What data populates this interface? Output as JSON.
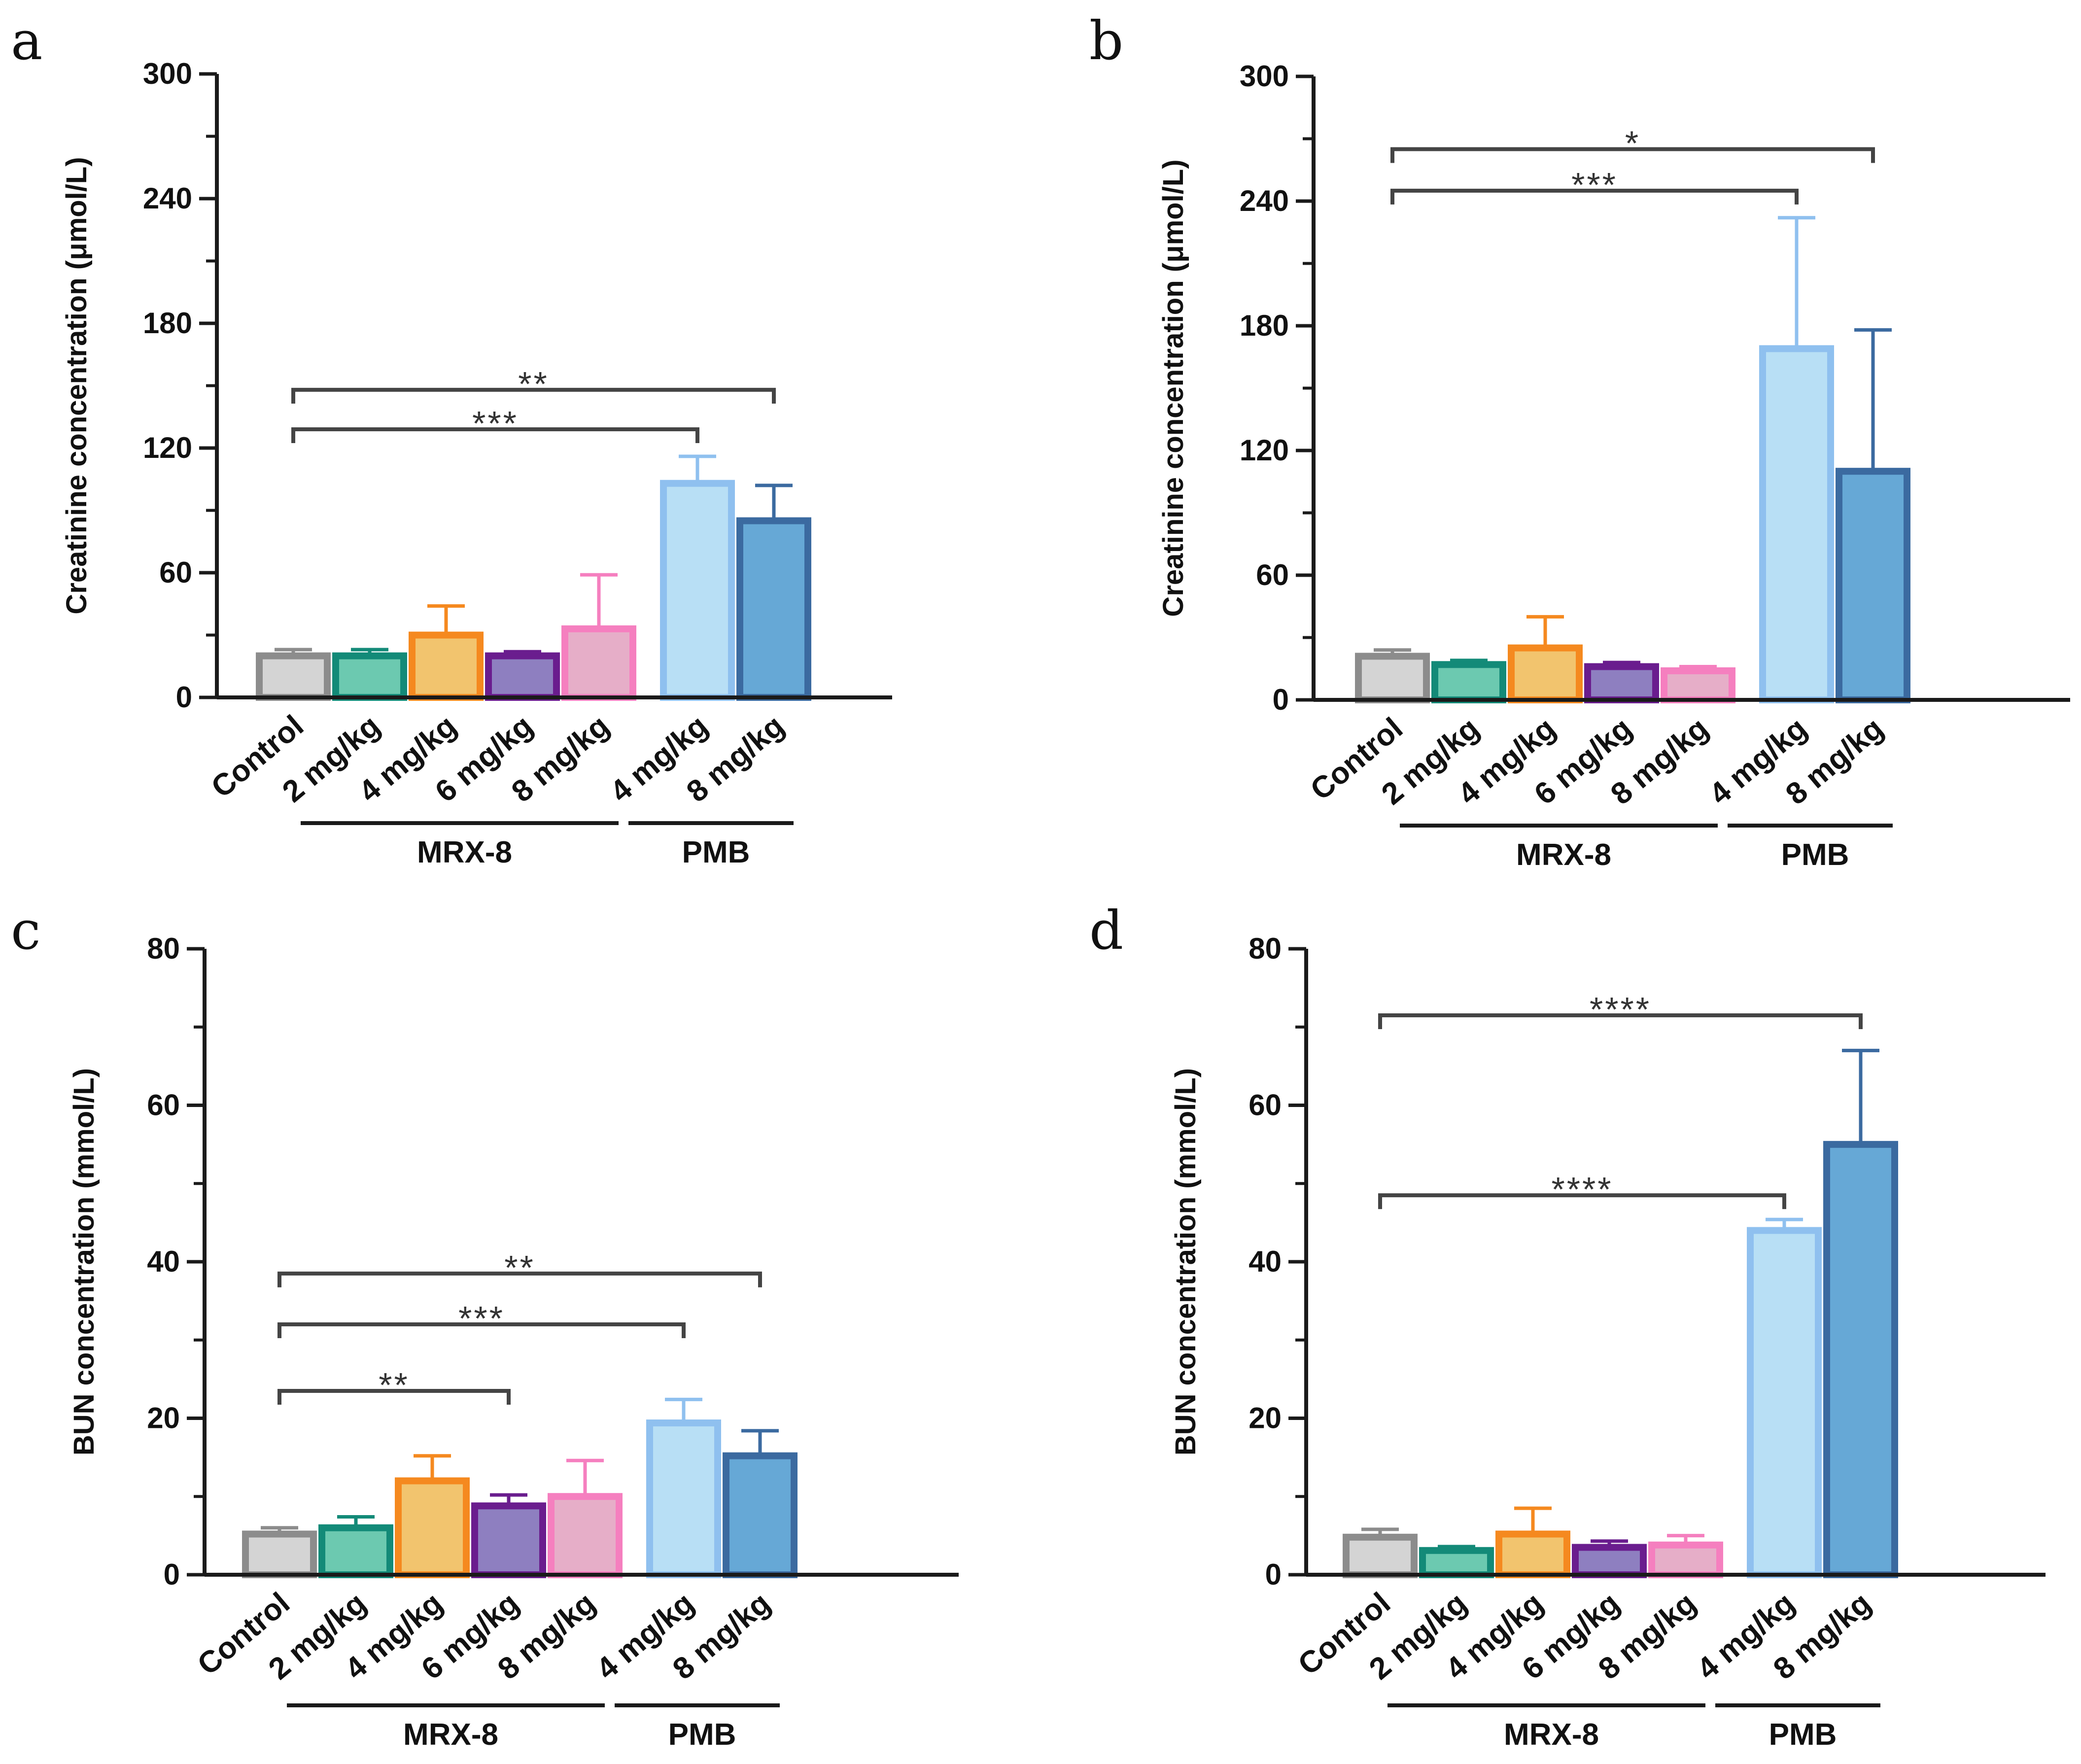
{
  "figure": {
    "categories": [
      "Control",
      "2 mg/kg",
      "4 mg/kg",
      "6 mg/kg",
      "8 mg/kg",
      "4 mg/kg",
      "8 mg/kg"
    ],
    "groups": [
      {
        "label": "MRX-8",
        "from": 1,
        "to": 4
      },
      {
        "label": "PMB",
        "from": 5,
        "to": 6
      }
    ],
    "colors": {
      "axis": "#1a1a1a",
      "bracket": "#444444",
      "bar_fill": [
        "#d4d4d4",
        "#6cc9b0",
        "#f2c46e",
        "#8e7fc0",
        "#e6aec8",
        "#b8dff5",
        "#66a8d6"
      ],
      "bar_edge": [
        "#8c8c8c",
        "#138a78",
        "#f5891f",
        "#6a1d8e",
        "#f57fbf",
        "#8fc0ef",
        "#3b6aa0"
      ]
    }
  },
  "chart_data": [
    {
      "panel": "a",
      "type": "bar",
      "ylabel": "Creatinine concentration (μmol/L)",
      "ylim": [
        0,
        300
      ],
      "yticks": [
        "0",
        "60",
        "120",
        "180",
        "240",
        "300"
      ],
      "ytick_values": [
        0,
        60,
        120,
        180,
        240,
        300
      ],
      "categories": [
        "Control",
        "2 mg/kg",
        "4 mg/kg",
        "6 mg/kg",
        "8 mg/kg",
        "4 mg/kg",
        "8 mg/kg"
      ],
      "values": [
        20,
        20,
        30,
        20,
        33,
        103,
        85
      ],
      "errors": [
        3,
        3,
        14,
        2,
        26,
        13,
        17
      ],
      "significance": [
        {
          "from": 0,
          "to": 5,
          "y": 129,
          "label": "***"
        },
        {
          "from": 0,
          "to": 6,
          "y": 148,
          "label": "**"
        }
      ]
    },
    {
      "panel": "b",
      "type": "bar",
      "ylabel": "Creatinine concentration (μmol/L)",
      "ylim": [
        0,
        300
      ],
      "yticks": [
        "0",
        "60",
        "120",
        "180",
        "240",
        "300"
      ],
      "ytick_values": [
        0,
        60,
        120,
        180,
        240,
        300
      ],
      "categories": [
        "Control",
        "2 mg/kg",
        "4 mg/kg",
        "6 mg/kg",
        "8 mg/kg",
        "4 mg/kg",
        "8 mg/kg"
      ],
      "values": [
        21,
        17,
        25,
        16,
        14,
        169,
        110
      ],
      "errors": [
        3,
        2,
        15,
        2,
        2,
        63,
        68
      ],
      "significance": [
        {
          "from": 0,
          "to": 5,
          "y": 245,
          "label": "***"
        },
        {
          "from": 0,
          "to": 6,
          "y": 265,
          "label": "*"
        }
      ]
    },
    {
      "panel": "c",
      "type": "bar",
      "ylabel": "BUN concentration (mmol/L)",
      "ylim": [
        0,
        80
      ],
      "yticks": [
        "0",
        "20",
        "40",
        "60",
        "80"
      ],
      "ytick_values": [
        0,
        20,
        40,
        60,
        80
      ],
      "categories": [
        "Control",
        "2 mg/kg",
        "4 mg/kg",
        "6 mg/kg",
        "8 mg/kg",
        "4 mg/kg",
        "8 mg/kg"
      ],
      "values": [
        5.2,
        6.0,
        12.0,
        8.8,
        10.0,
        19.4,
        15.2
      ],
      "errors": [
        0.8,
        1.4,
        3.2,
        1.4,
        4.6,
        3.0,
        3.2
      ],
      "significance": [
        {
          "from": 0,
          "to": 3,
          "y": 23.5,
          "label": "**"
        },
        {
          "from": 0,
          "to": 5,
          "y": 32,
          "label": "***"
        },
        {
          "from": 0,
          "to": 6,
          "y": 38.5,
          "label": "**"
        }
      ]
    },
    {
      "panel": "d",
      "type": "bar",
      "ylabel": "BUN concentration (mmol/L)",
      "ylim": [
        0,
        80
      ],
      "yticks": [
        "0",
        "20",
        "40",
        "60",
        "80"
      ],
      "ytick_values": [
        0,
        20,
        40,
        60,
        80
      ],
      "categories": [
        "Control",
        "2 mg/kg",
        "4 mg/kg",
        "6 mg/kg",
        "8 mg/kg",
        "4 mg/kg",
        "8 mg/kg"
      ],
      "values": [
        4.8,
        3.1,
        5.2,
        3.5,
        3.8,
        44,
        55
      ],
      "errors": [
        1.0,
        0.5,
        3.3,
        0.8,
        1.2,
        1.4,
        12
      ],
      "significance": [
        {
          "from": 0,
          "to": 5,
          "y": 48.5,
          "label": "****"
        },
        {
          "from": 0,
          "to": 6,
          "y": 71.5,
          "label": "****"
        }
      ]
    }
  ]
}
